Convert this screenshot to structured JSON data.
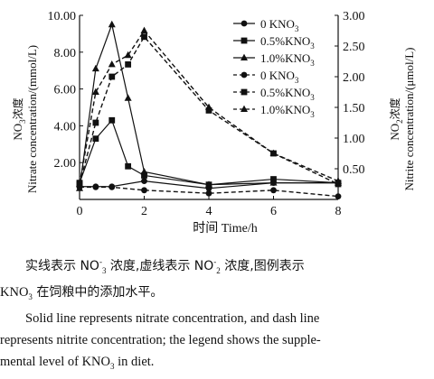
{
  "chart_data": {
    "type": "line",
    "x": [
      0,
      0.5,
      1,
      1.5,
      2,
      4,
      6,
      8
    ],
    "xlabel": "时间  Time/h",
    "xlim": [
      0,
      8
    ],
    "xticks": [
      "0",
      "2",
      "4",
      "6",
      "8"
    ],
    "ylabel_left_cn": "NO",
    "ylabel_left_sub": "3",
    "ylabel_left_cn2": "浓度",
    "ylabel_left_en": "Nitrate concentration/(mmol/L)",
    "ylim_left": [
      0,
      10
    ],
    "yticks_left": [
      "2.00",
      "4.00",
      "6.00",
      "8.00",
      "10.00"
    ],
    "ylabel_right_cn": "NO",
    "ylabel_right_sub": "2",
    "ylabel_right_cn2": "浓度",
    "ylabel_right_en": "Nitrite concentration/(μmol/L)",
    "ylim_right": [
      0,
      3
    ],
    "yticks_right": [
      "0.50",
      "1.00",
      "1.50",
      "2.00",
      "2.50",
      "3.00"
    ],
    "legend_position": "top-right",
    "series": [
      {
        "name": "0 KNO3",
        "axis": "left",
        "style": "solid",
        "marker": "circle",
        "x": [
          0,
          0.5,
          1,
          2,
          4,
          6,
          8
        ],
        "values": [
          0.7,
          0.7,
          0.7,
          1.0,
          0.6,
          0.9,
          0.9
        ]
      },
      {
        "name": "0.5%KNO3",
        "axis": "left",
        "style": "solid",
        "marker": "square",
        "x": [
          0,
          0.5,
          1,
          1.5,
          2,
          4,
          6,
          8
        ],
        "values": [
          0.9,
          3.3,
          4.3,
          1.8,
          1.3,
          0.8,
          1.1,
          0.9
        ]
      },
      {
        "name": "1.0%KNO3",
        "axis": "left",
        "style": "solid",
        "marker": "triangle",
        "x": [
          0,
          0.5,
          1,
          1.5,
          2,
          4,
          6,
          8
        ],
        "values": [
          0.6,
          7.1,
          9.5,
          5.5,
          1.5,
          0.8,
          0.9,
          0.9
        ]
      },
      {
        "name": "0 KNO3",
        "axis": "right",
        "style": "dashed",
        "marker": "circle",
        "x": [
          0,
          0.5,
          1,
          2,
          4,
          6,
          8
        ],
        "values": [
          0.2,
          0.2,
          0.2,
          0.15,
          0.1,
          0.15,
          0.05
        ]
      },
      {
        "name": "0.5%KNO3",
        "axis": "right",
        "style": "dashed",
        "marker": "square",
        "x": [
          0,
          0.5,
          1,
          1.5,
          2,
          4,
          6,
          8
        ],
        "values": [
          0.25,
          1.25,
          2.0,
          2.2,
          2.65,
          1.45,
          0.75,
          0.25
        ]
      },
      {
        "name": "1.0%KNO3",
        "axis": "right",
        "style": "dashed",
        "marker": "triangle",
        "x": [
          0,
          0.5,
          1,
          1.5,
          2,
          4,
          6,
          8
        ],
        "values": [
          0.25,
          1.75,
          2.2,
          2.35,
          2.75,
          1.5,
          0.75,
          0.3
        ]
      }
    ]
  },
  "caption_cn": {
    "p1": "实线表示 NO",
    "p1_sub": "3",
    "p1_sup": "-",
    "p2": " 浓度,虚线表示 NO",
    "p2_sub": "2",
    "p2_sup": "-",
    "p3": " 浓度,图例表示",
    "p4": "KNO",
    "p4_sub": "3",
    "p5": " 在饲粮中的添加水平。"
  },
  "caption_en": {
    "l1": "Solid line represents nitrate concentration, and dash line",
    "l2": "represents nitrite concentration; the legend shows the supple-",
    "l3": "mental level of KNO",
    "l3_sub": "3",
    "l3_end": " in diet."
  }
}
